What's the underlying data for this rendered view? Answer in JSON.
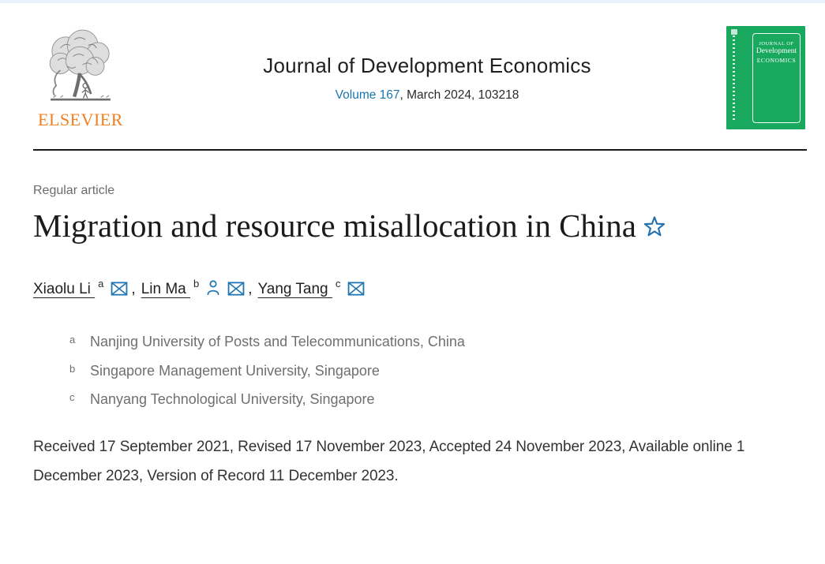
{
  "header": {
    "logo_text": "ELSEVIER",
    "journal_title": "Journal of Development Economics",
    "volume_link": "Volume 167",
    "volume_rest": ", March 2024, 103218",
    "cover": {
      "line1": "JOURNAL OF",
      "line2": "Development",
      "line3": "ECONOMICS"
    }
  },
  "article": {
    "type_label": "Regular article",
    "title": "Migration and resource misallocation in China",
    "title_note_icon": "star-outline",
    "author_separator": ",",
    "authors": [
      {
        "name": "Xiaolu Li",
        "sup": "a",
        "icons": [
          "envelope"
        ]
      },
      {
        "name": "Lin Ma",
        "sup": "b",
        "icons": [
          "person",
          "envelope"
        ]
      },
      {
        "name": "Yang Tang",
        "sup": "c",
        "icons": [
          "envelope"
        ]
      }
    ],
    "affiliations": [
      {
        "sup": "a",
        "text": "Nanjing University of Posts and Telecommunications, China"
      },
      {
        "sup": "b",
        "text": "Singapore Management University, Singapore"
      },
      {
        "sup": "c",
        "text": "Nanyang Technological University, Singapore"
      }
    ],
    "dates": "Received 17 September 2021, Revised 17 November 2023, Accepted 24 November 2023, Available online 1 December 2023, Version of Record 11 December 2023."
  },
  "colors": {
    "link_blue": "#1a75ad",
    "icon_blue": "#1f76b2",
    "star_blue": "#1d6fb0",
    "cover_green": "#18a85e",
    "elsevier_orange": "#ef8022",
    "divider_dark": "#1a1a1a",
    "top_strip_blue": "#e9f2fb"
  }
}
